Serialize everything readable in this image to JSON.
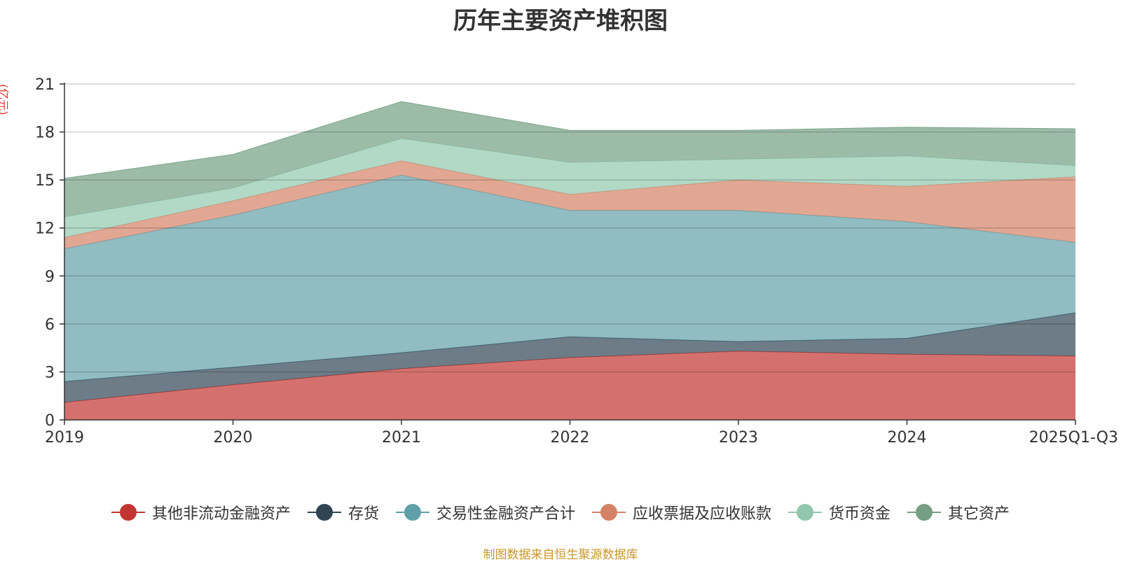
{
  "chart_data": {
    "type": "area",
    "stacked": true,
    "title": "历年主要资产堆积图",
    "ylabel": "(亿元)",
    "xlabel": "",
    "categories": [
      "2019",
      "2020",
      "2021",
      "2022",
      "2023",
      "2024",
      "2025Q1-Q3"
    ],
    "ylim": [
      0,
      21
    ],
    "yticks": [
      "0",
      "3",
      "6",
      "9",
      "12",
      "15",
      "18",
      "21"
    ],
    "grid": true,
    "legend_position": "bottom",
    "series": [
      {
        "name": "其他非流动金融资产",
        "color": "#c23531",
        "values": [
          1.1,
          2.2,
          3.2,
          3.9,
          4.3,
          4.1,
          4.0
        ]
      },
      {
        "name": "存货",
        "color": "#2f4554",
        "values": [
          1.3,
          1.1,
          1.0,
          1.3,
          0.6,
          1.0,
          2.7
        ]
      },
      {
        "name": "交易性金融资产合计",
        "color": "#61a0a8",
        "values": [
          8.3,
          9.5,
          11.1,
          7.9,
          8.2,
          7.3,
          4.4
        ]
      },
      {
        "name": "应收票据及应收账款",
        "color": "#d48265",
        "values": [
          0.7,
          0.9,
          0.9,
          1.0,
          1.9,
          2.2,
          4.1
        ]
      },
      {
        "name": "货币资金",
        "color": "#91c7ae",
        "values": [
          1.3,
          0.8,
          1.4,
          2.0,
          1.3,
          1.9,
          0.7
        ]
      },
      {
        "name": "其它资产",
        "color": "#749f83",
        "values": [
          2.4,
          2.1,
          2.3,
          2.0,
          1.8,
          1.8,
          2.3
        ]
      }
    ]
  },
  "source_note": "制图数据来自恒生聚源数据库"
}
